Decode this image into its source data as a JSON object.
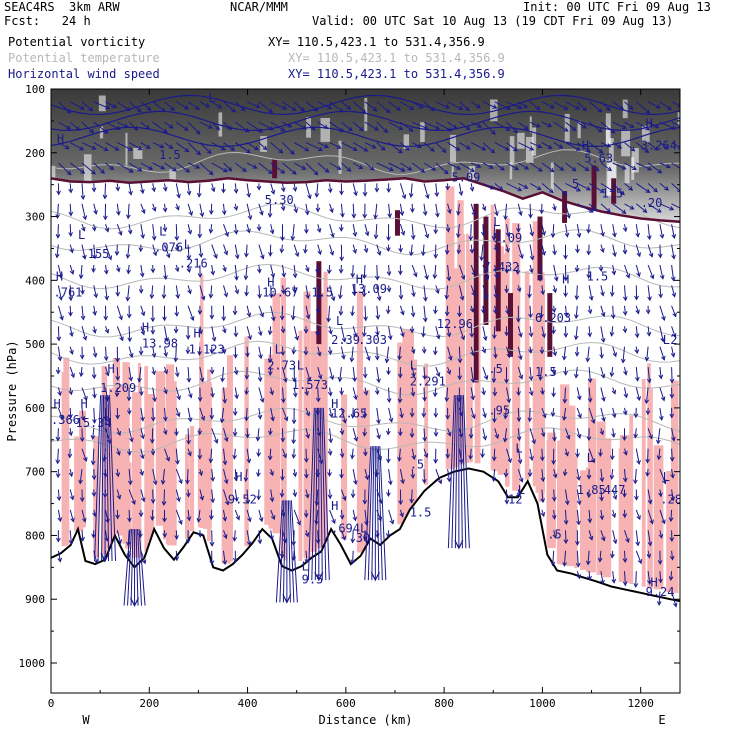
{
  "header": {
    "model": "SEAC4RS  3km ARW",
    "org": "NCAR/MMM",
    "init": "Init: 00 UTC Fri 09 Aug 13",
    "fcst": "Fcst:   24 h",
    "valid": "Valid: 00 UTC Sat 10 Aug 13 (19 CDT Fri 09 Aug 13)",
    "fields": [
      {
        "name": "Potential vorticity",
        "xy": "XY= 110.5,423.1 to 531.4,356.9",
        "color": "#000000"
      },
      {
        "name": "Potential temperature",
        "xy": "XY= 110.5,423.1 to 531.4,356.9",
        "color": "#b8b8b8"
      },
      {
        "name": "Horizontal wind speed",
        "xy": "XY= 110.5,423.1 to 531.4,356.9",
        "color": "#1a1a8c"
      }
    ]
  },
  "chart_data": {
    "type": "cross-section",
    "xlabel": "Distance (km)",
    "ylabel": "Pressure (hPa)",
    "xlim": [
      0,
      1280
    ],
    "ylim": [
      1050,
      100
    ],
    "x_ticks": [
      0,
      200,
      400,
      600,
      800,
      1000,
      1200
    ],
    "y_ticks": [
      100,
      200,
      300,
      400,
      500,
      600,
      700,
      800,
      900,
      1000
    ],
    "y_scale": "pressure",
    "endpoint_labels": {
      "left": "W",
      "right": "E"
    },
    "colors": {
      "pv_high": "#f7b3b3",
      "pv_strong": "#5a1035",
      "stratosphere": "#555555",
      "wind": "#1a1a8c",
      "theta": "#b8b8b8",
      "terrain": "#000000"
    },
    "terrain_pressure": [
      [
        0,
        835
      ],
      [
        20,
        828
      ],
      [
        40,
        815
      ],
      [
        55,
        790
      ],
      [
        70,
        840
      ],
      [
        90,
        845
      ],
      [
        110,
        838
      ],
      [
        130,
        800
      ],
      [
        150,
        830
      ],
      [
        170,
        850
      ],
      [
        190,
        835
      ],
      [
        210,
        790
      ],
      [
        230,
        820
      ],
      [
        250,
        838
      ],
      [
        270,
        818
      ],
      [
        290,
        795
      ],
      [
        310,
        800
      ],
      [
        330,
        850
      ],
      [
        350,
        855
      ],
      [
        370,
        845
      ],
      [
        390,
        830
      ],
      [
        410,
        812
      ],
      [
        430,
        790
      ],
      [
        450,
        805
      ],
      [
        470,
        848
      ],
      [
        490,
        855
      ],
      [
        510,
        848
      ],
      [
        530,
        835
      ],
      [
        550,
        825
      ],
      [
        570,
        790
      ],
      [
        590,
        815
      ],
      [
        610,
        845
      ],
      [
        630,
        832
      ],
      [
        650,
        805
      ],
      [
        670,
        815
      ],
      [
        690,
        800
      ],
      [
        710,
        790
      ],
      [
        730,
        760
      ],
      [
        760,
        730
      ],
      [
        790,
        710
      ],
      [
        820,
        700
      ],
      [
        850,
        695
      ],
      [
        880,
        700
      ],
      [
        910,
        715
      ],
      [
        930,
        740
      ],
      [
        950,
        740
      ],
      [
        970,
        715
      ],
      [
        990,
        750
      ],
      [
        1010,
        830
      ],
      [
        1030,
        855
      ],
      [
        1060,
        860
      ],
      [
        1080,
        865
      ],
      [
        1110,
        872
      ],
      [
        1140,
        880
      ],
      [
        1170,
        885
      ],
      [
        1200,
        890
      ],
      [
        1230,
        895
      ],
      [
        1260,
        900
      ],
      [
        1280,
        903
      ]
    ],
    "tropopause_pressure": [
      [
        0,
        240
      ],
      [
        40,
        245
      ],
      [
        80,
        246
      ],
      [
        120,
        244
      ],
      [
        160,
        247
      ],
      [
        200,
        245
      ],
      [
        240,
        243
      ],
      [
        280,
        246
      ],
      [
        320,
        244
      ],
      [
        360,
        240
      ],
      [
        400,
        243
      ],
      [
        440,
        245
      ],
      [
        480,
        247
      ],
      [
        520,
        246
      ],
      [
        560,
        243
      ],
      [
        600,
        245
      ],
      [
        640,
        244
      ],
      [
        680,
        242
      ],
      [
        720,
        240
      ],
      [
        760,
        245
      ],
      [
        800,
        243
      ],
      [
        840,
        240
      ],
      [
        880,
        250
      ],
      [
        920,
        260
      ],
      [
        960,
        272
      ],
      [
        1000,
        262
      ],
      [
        1040,
        275
      ],
      [
        1080,
        284
      ],
      [
        1120,
        292
      ],
      [
        1160,
        298
      ],
      [
        1200,
        303
      ],
      [
        1240,
        306
      ],
      [
        1280,
        308
      ]
    ],
    "theta_levels": [
      215,
      300,
      340,
      395,
      470,
      515,
      560,
      620,
      650
    ],
    "annotations": [
      {
        "text": "L",
        "x": 320,
        "y": 120
      },
      {
        "text": "1.5",
        "x": 220,
        "y": 210
      },
      {
        "text": "H",
        "x": 12,
        "y": 185
      },
      {
        "text": "5.30",
        "x": 435,
        "y": 280
      },
      {
        "text": "L",
        "x": 220,
        "y": 330
      },
      {
        "text": ".076",
        "x": 210,
        "y": 355
      },
      {
        "text": "L",
        "x": 55,
        "y": 335
      },
      {
        "text": ".155",
        "x": 60,
        "y": 365
      },
      {
        "text": "L",
        "x": 270,
        "y": 350
      },
      {
        "text": ".216",
        "x": 260,
        "y": 380
      },
      {
        "text": "H",
        "x": 10,
        "y": 400
      },
      {
        "text": ".761",
        "x": 5,
        "y": 425
      },
      {
        "text": "H",
        "x": 440,
        "y": 410
      },
      {
        "text": "10.67",
        "x": 430,
        "y": 425
      },
      {
        "text": "1.5",
        "x": 530,
        "y": 425
      },
      {
        "text": "H",
        "x": 620,
        "y": 405
      },
      {
        "text": "13.09",
        "x": 610,
        "y": 420
      },
      {
        "text": "H",
        "x": 185,
        "y": 480
      },
      {
        "text": "13.98",
        "x": 185,
        "y": 505
      },
      {
        "text": "H",
        "x": 290,
        "y": 490
      },
      {
        "text": "1.123",
        "x": 280,
        "y": 515
      },
      {
        "text": "H",
        "x": 115,
        "y": 545
      },
      {
        "text": "1.209",
        "x": 100,
        "y": 575
      },
      {
        "text": "L",
        "x": 455,
        "y": 515
      },
      {
        "text": "2.73",
        "x": 440,
        "y": 540
      },
      {
        "text": "L",
        "x": 500,
        "y": 540
      },
      {
        "text": "1.573",
        "x": 490,
        "y": 570
      },
      {
        "text": "L",
        "x": 580,
        "y": 470
      },
      {
        "text": "2.39",
        "x": 570,
        "y": 500
      },
      {
        "text": ".303",
        "x": 625,
        "y": 500
      },
      {
        "text": "H",
        "x": 5,
        "y": 600
      },
      {
        "text": ".366",
        "x": 0,
        "y": 625
      },
      {
        "text": "H",
        "x": 60,
        "y": 600
      },
      {
        "text": "15.34",
        "x": 50,
        "y": 630
      },
      {
        "text": "H",
        "x": 570,
        "y": 600
      },
      {
        "text": "12.65",
        "x": 570,
        "y": 615
      },
      {
        "text": "2.291",
        "x": 730,
        "y": 565
      },
      {
        "text": "12.96",
        "x": 785,
        "y": 475
      },
      {
        "text": "L",
        "x": 730,
        "y": 540
      },
      {
        "text": "H",
        "x": 375,
        "y": 715
      },
      {
        "text": "9.52",
        "x": 360,
        "y": 750
      },
      {
        "text": "H",
        "x": 570,
        "y": 760
      },
      {
        "text": ".694L",
        "x": 570,
        "y": 795
      },
      {
        "text": "30",
        "x": 620,
        "y": 810
      },
      {
        "text": "L",
        "x": 510,
        "y": 855
      },
      {
        "text": "9.5",
        "x": 510,
        "y": 875
      },
      {
        "text": "1.5",
        "x": 730,
        "y": 770
      },
      {
        "text": ".5",
        "x": 730,
        "y": 695
      },
      {
        "text": "L",
        "x": 945,
        "y": 670
      },
      {
        "text": ".95",
        "x": 890,
        "y": 610
      },
      {
        "text": "5.09",
        "x": 815,
        "y": 245
      },
      {
        "text": "L",
        "x": 900,
        "y": 315
      },
      {
        "text": "5.09",
        "x": 900,
        "y": 340
      },
      {
        "text": "7.432",
        "x": 880,
        "y": 385
      },
      {
        "text": "6.203",
        "x": 985,
        "y": 465
      },
      {
        "text": ".5",
        "x": 890,
        "y": 545
      },
      {
        "text": "1.5",
        "x": 985,
        "y": 550
      },
      {
        "text": "H",
        "x": 1040,
        "y": 405
      },
      {
        "text": "1.5",
        "x": 1090,
        "y": 400
      },
      {
        "text": "H",
        "x": 1080,
        "y": 195
      },
      {
        "text": "5.63",
        "x": 1085,
        "y": 215
      },
      {
        "text": "H",
        "x": 1210,
        "y": 160
      },
      {
        "text": "3.264",
        "x": 1200,
        "y": 195
      },
      {
        "text": "5",
        "x": 1060,
        "y": 255
      },
      {
        "text": "1.5",
        "x": 1120,
        "y": 270
      },
      {
        "text": ".20",
        "x": 1200,
        "y": 285
      },
      {
        "text": "L",
        "x": 1090,
        "y": 685
      },
      {
        "text": "1.85",
        "x": 1070,
        "y": 735
      },
      {
        "text": "447",
        "x": 1125,
        "y": 735
      },
      {
        "text": "L",
        "x": 1245,
        "y": 715
      },
      {
        "text": ".28",
        "x": 1240,
        "y": 750
      },
      {
        "text": "L",
        "x": 1245,
        "y": 500
      },
      {
        "text": "2",
        "x": 1260,
        "y": 500
      },
      {
        "text": ".5",
        "x": 1010,
        "y": 805
      },
      {
        "text": "H",
        "x": 1220,
        "y": 880
      },
      {
        "text": "9.24",
        "x": 1210,
        "y": 895
      },
      {
        "text": "L",
        "x": 950,
        "y": 735
      },
      {
        "text": "12",
        "x": 930,
        "y": 750
      }
    ]
  }
}
